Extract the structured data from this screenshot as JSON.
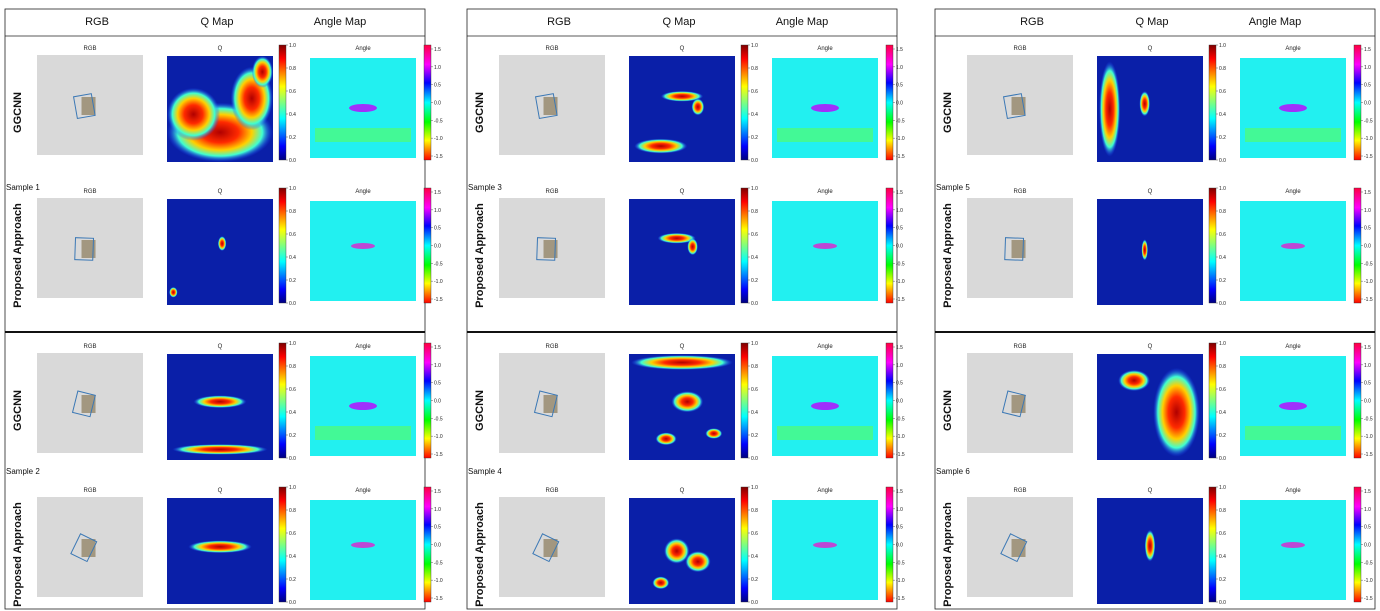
{
  "figure": {
    "column_headers": [
      "RGB",
      "Q Map",
      "Angle Map"
    ],
    "panel_titles": {
      "rgb": "RGB",
      "q": "Q",
      "angle": "Angle"
    },
    "row_labels": [
      "GGCNN",
      "Proposed Approach"
    ],
    "samples": [
      "Sample 1",
      "Sample 2",
      "Sample 3",
      "Sample 4",
      "Sample 5",
      "Sample 6"
    ],
    "q_colorbar_ticks": [
      "1.0",
      "0.8",
      "0.6",
      "0.4",
      "0.2",
      "0.0"
    ],
    "angle_colorbar_ticks": [
      "1.5",
      "1.0",
      "0.5",
      "0.0",
      "-0.5",
      "-1.0",
      "-1.5"
    ],
    "colors": {
      "q_background": "#0a1fa8",
      "angle_background": "#22f0f0",
      "rgb_background": "#d9d9d9",
      "grasp_box": "#3b78b5",
      "hot": "#e8261d",
      "warm": "#f5b414"
    }
  }
}
